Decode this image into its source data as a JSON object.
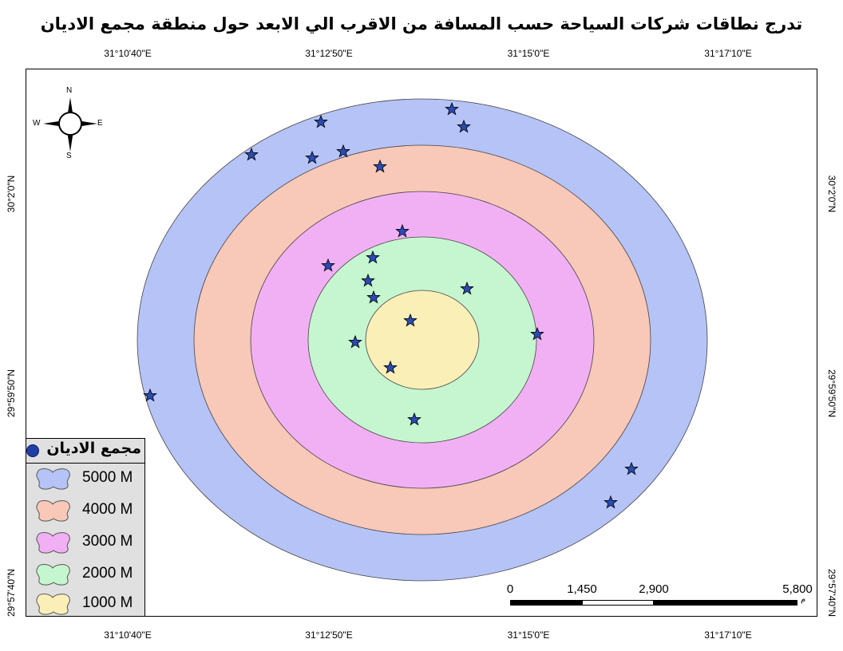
{
  "map": {
    "title": "تدرج نطاقات شركات السياحة حسب المسافة من الاقرب الي الابعد حول منطقة مجمع الاديان",
    "top_ticks": [
      "31°10'40\"E",
      "31°12'50\"E",
      "31°15'0\"E",
      "31°17'10\"E"
    ],
    "bottom_ticks": [
      "31°10'40\"E",
      "31°12'50\"E",
      "31°15'0\"E",
      "31°17'10\"E"
    ],
    "left_ticks": [
      "30°2'0\"N",
      "29°59'50\"N",
      "29°57'40\"N"
    ],
    "right_ticks": [
      "30°2'0\"N",
      "29°59'50\"N",
      "29°57'40\"N"
    ],
    "buffer_rings": [
      {
        "distance": "5000 M",
        "color": "#b6c3f6"
      },
      {
        "distance": "4000 M",
        "color": "#f8c8b8"
      },
      {
        "distance": "3000 M",
        "color": "#f2b0f4"
      },
      {
        "distance": "2000 M",
        "color": "#c6f6cf"
      },
      {
        "distance": "1000 M",
        "color": "#fbefb8"
      }
    ],
    "company_marker_color": "#2b4bb3",
    "center_marker_color": "#1f3fa6"
  },
  "north_arrow": {
    "n": "N",
    "s": "S",
    "e": "E",
    "w": "W"
  },
  "legend": {
    "title": "مجمع الاديان",
    "items": [
      {
        "label": "5000 M",
        "color": "#b6c3f6"
      },
      {
        "label": "4000 M",
        "color": "#f8c8b8"
      },
      {
        "label": "3000 M",
        "color": "#f2b0f4"
      },
      {
        "label": "2000 M",
        "color": "#c6f6cf"
      },
      {
        "label": "1000 M",
        "color": "#fbefb8"
      }
    ]
  },
  "scale": {
    "labels": [
      "0",
      "1,450",
      "2,900",
      "5,800"
    ],
    "unit": "م"
  }
}
